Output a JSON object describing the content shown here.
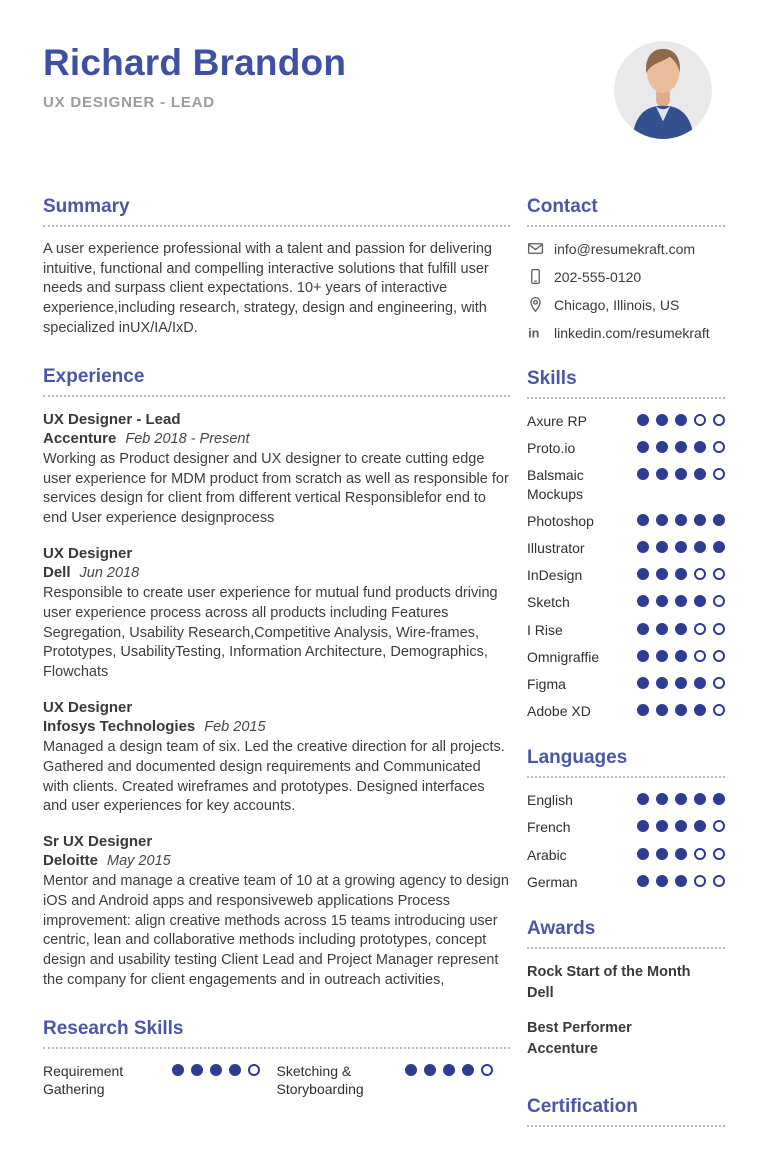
{
  "header": {
    "name": "Richard Brandon",
    "title": "UX DESIGNER - LEAD"
  },
  "colors": {
    "accent_heading": "#4a57a6",
    "accent_name": "#3e50a3",
    "dot_fill": "#2e3c94",
    "body_text": "#3d3d3d",
    "subtitle_gray": "#9b9b9b"
  },
  "left": {
    "summary": {
      "heading": "Summary",
      "text": "A user experience professional with a talent and passion for delivering intuitive, functional and compelling interactive solutions that fulfill user needs and surpass client expectations. 10+ years of interactive experience,including research, strategy, design and engineering, with specialized inUX/IA/IxD."
    },
    "experience": {
      "heading": "Experience",
      "jobs": [
        {
          "title": "UX Designer - Lead",
          "company": "Accenture",
          "dates": "Feb 2018 - Present",
          "description": "Working as Product designer and UX designer to create cutting edge user experience for MDM product from scratch as well as responsible for services design for client from different vertical Responsiblefor end to end User experience designprocess"
        },
        {
          "title": "UX Designer",
          "company": "Dell",
          "dates": "Jun 2018",
          "description": "Responsible to create user experience for mutual fund products driving user experience process across all products including Features Segregation, Usability Research,Competitive Analysis, Wire-frames, Prototypes, UsabilityTesting, Information Architecture, Demographics, Flowchats"
        },
        {
          "title": "UX Designer",
          "company": "Infosys Technologies",
          "dates": "Feb 2015",
          "description": "Managed a design team of six. Led the creative direction for all projects. Gathered and documented design requirements and Communicated with clients. Created wireframes and prototypes. Designed interfaces and user experiences for key accounts."
        },
        {
          "title": "Sr UX Designer",
          "company": "Deloitte",
          "dates": "May 2015",
          "description": "Mentor and manage a creative team of 10 at a growing agency to design iOS and Android apps and responsiveweb applications Process improvement: align creative methods across 15 teams introducing user centric, lean and collaborative methods including prototypes, concept design and usability testing Client Lead and Project Manager represent the company for client engagements and in outreach activities,"
        }
      ]
    },
    "research_skills": {
      "heading": "Research Skills",
      "items": [
        {
          "label": "Requirement Gathering",
          "rating": 4,
          "max": 5
        },
        {
          "label": "Sketching & Storyboarding",
          "rating": 4,
          "max": 5
        }
      ]
    }
  },
  "right": {
    "contact": {
      "heading": "Contact",
      "items": [
        {
          "icon": "email-icon",
          "value": "info@resumekraft.com"
        },
        {
          "icon": "phone-icon",
          "value": "202-555-0120"
        },
        {
          "icon": "location-icon",
          "value": "Chicago, Illinois, US"
        },
        {
          "icon": "linkedin-icon",
          "value": "linkedin.com/resumekraft"
        }
      ]
    },
    "skills": {
      "heading": "Skills",
      "items": [
        {
          "label": "Axure RP",
          "rating": 3,
          "max": 5
        },
        {
          "label": "Proto.io",
          "rating": 4,
          "max": 5
        },
        {
          "label": "Balsmaic Mockups",
          "rating": 4,
          "max": 5
        },
        {
          "label": "Photoshop",
          "rating": 5,
          "max": 5
        },
        {
          "label": "Illustrator",
          "rating": 5,
          "max": 5
        },
        {
          "label": "InDesign",
          "rating": 3,
          "max": 5
        },
        {
          "label": "Sketch",
          "rating": 4,
          "max": 5
        },
        {
          "label": "I Rise",
          "rating": 3,
          "max": 5
        },
        {
          "label": "Omnigraffie",
          "rating": 3,
          "max": 5
        },
        {
          "label": "Figma",
          "rating": 4,
          "max": 5
        },
        {
          "label": "Adobe XD",
          "rating": 4,
          "max": 5
        }
      ]
    },
    "languages": {
      "heading": "Languages",
      "items": [
        {
          "label": "English",
          "rating": 5,
          "max": 5
        },
        {
          "label": "French",
          "rating": 4,
          "max": 5
        },
        {
          "label": "Arabic",
          "rating": 3,
          "max": 5
        },
        {
          "label": "German",
          "rating": 3,
          "max": 5
        }
      ]
    },
    "awards": {
      "heading": "Awards",
      "items": [
        {
          "title": "Rock Start of the Month",
          "org": "Dell"
        },
        {
          "title": "Best Performer",
          "org": "Accenture"
        }
      ]
    },
    "certification": {
      "heading": "Certification"
    }
  }
}
